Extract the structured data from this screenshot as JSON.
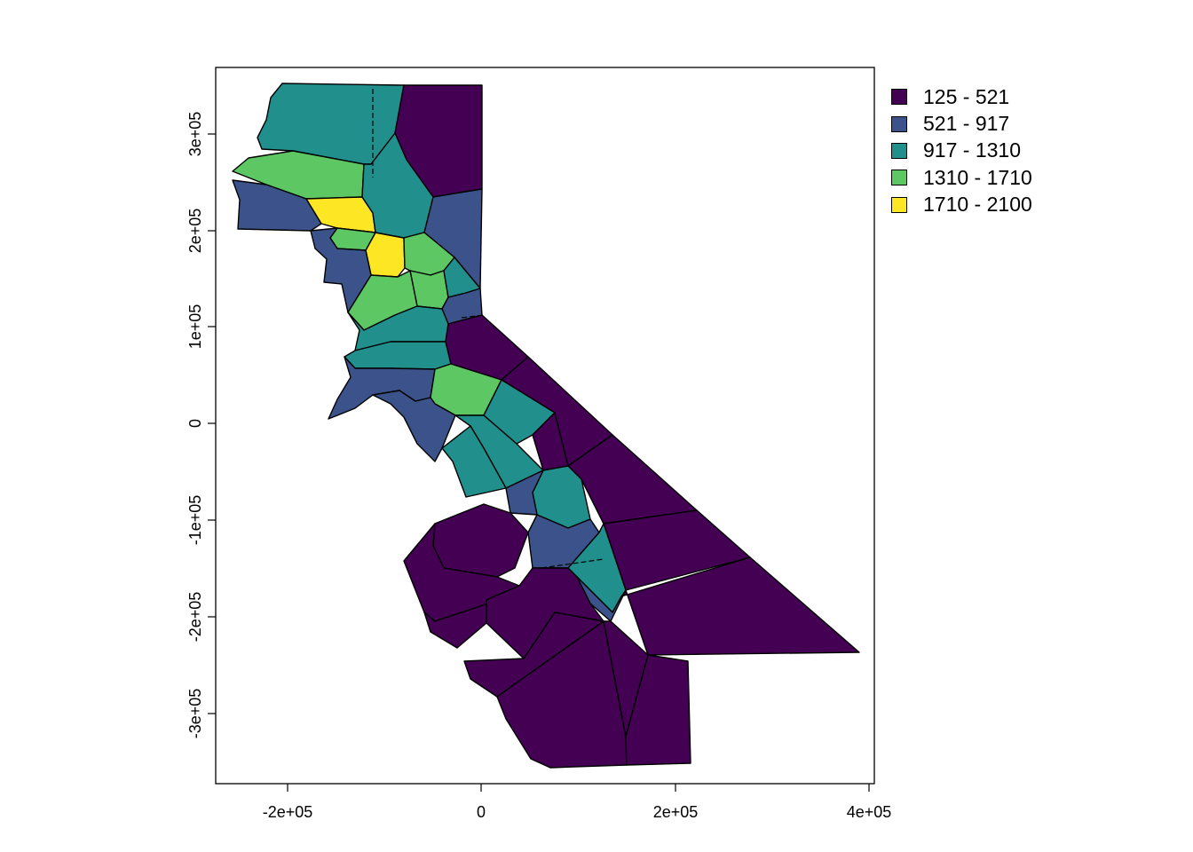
{
  "chart_data": {
    "type": "choropleth",
    "title": "",
    "xlabel": "",
    "ylabel": "",
    "xlim": [
      -270000,
      400000
    ],
    "ylim": [
      -372000,
      372000
    ],
    "x_ticks": [
      {
        "value": -200000,
        "label": "-2e+05"
      },
      {
        "value": 0,
        "label": "0"
      },
      {
        "value": 200000,
        "label": "2e+05"
      },
      {
        "value": 400000,
        "label": "4e+05"
      }
    ],
    "y_ticks": [
      {
        "value": 300000,
        "label": "3e+05"
      },
      {
        "value": 200000,
        "label": "2e+05"
      },
      {
        "value": 100000,
        "label": "1e+05"
      },
      {
        "value": 0,
        "label": "0"
      },
      {
        "value": -100000,
        "label": "-1e+05"
      },
      {
        "value": -200000,
        "label": "-2e+05"
      },
      {
        "value": -300000,
        "label": "-3e+05"
      }
    ],
    "legend": {
      "position": "top-right",
      "classes": [
        {
          "label": "125 - 521",
          "color": "#440154"
        },
        {
          "label": "521 - 917",
          "color": "#3B528B"
        },
        {
          "label": "917 - 1310",
          "color": "#21908C"
        },
        {
          "label": "1310 - 1710",
          "color": "#5DC863"
        },
        {
          "label": "1710 - 2100",
          "color": "#FDE725"
        }
      ]
    },
    "boundary_color": "#000000"
  }
}
